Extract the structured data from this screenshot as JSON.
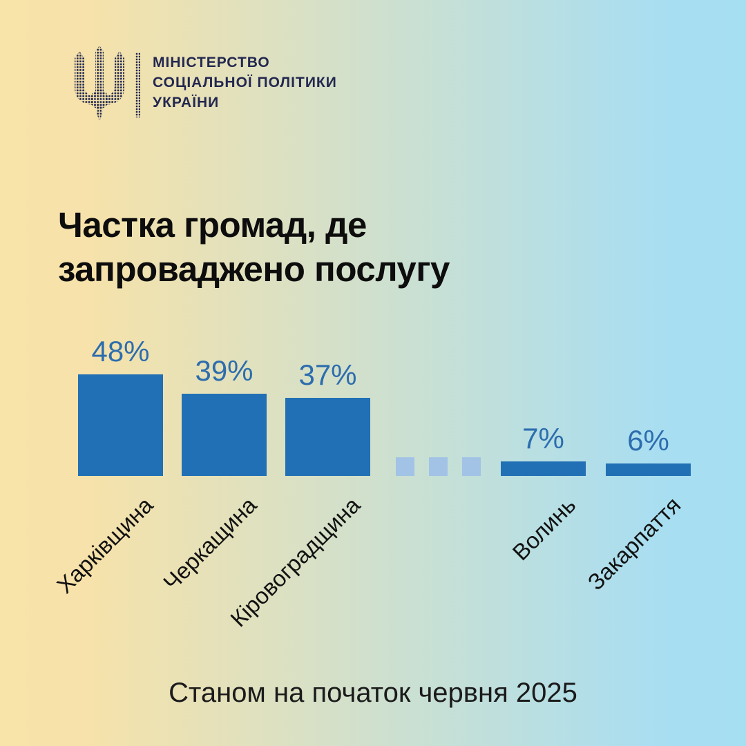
{
  "header": {
    "org_lines": [
      "МІНІСТЕРСТВО",
      "СОЦІАЛЬНОЇ ПОЛІТИКИ",
      "УКРАЇНИ"
    ]
  },
  "title": {
    "line1": "Частка громад, де",
    "line2": "запроваджено послугу"
  },
  "footer": {
    "caption": "Станом на початок червня 2025"
  },
  "colors": {
    "background_left": "#f8e3a9",
    "background_right": "#a6def2",
    "logo_navy": "#232850",
    "bar_blue": "#2170b5",
    "ellipsis_blue": "#a2c3e6",
    "value_label_blue": "#2d6dae",
    "title_black": "#0d0d0d"
  },
  "chart_data": {
    "type": "bar",
    "title": "Частка громад, де запроваджено послугу",
    "subtitle": "Станом на початок червня 2025",
    "categories": [
      "Харківщина",
      "Черкащина",
      "Кіровоградщина",
      "Волинь",
      "Закарпаття"
    ],
    "values": [
      48,
      39,
      37,
      7,
      6
    ],
    "value_labels": [
      "48%",
      "39%",
      "37%",
      "7%",
      "6%"
    ],
    "unit": "%",
    "ylim": [
      0,
      50
    ],
    "grid": false,
    "legend": "none",
    "axis_labels_rotation_deg": 45,
    "ellipsis_gap_between_index": [
      2,
      3
    ],
    "bar_color": "#2170b5",
    "ellipsis_color": "#a2c3e6",
    "value_label_color": "#2d6dae"
  }
}
